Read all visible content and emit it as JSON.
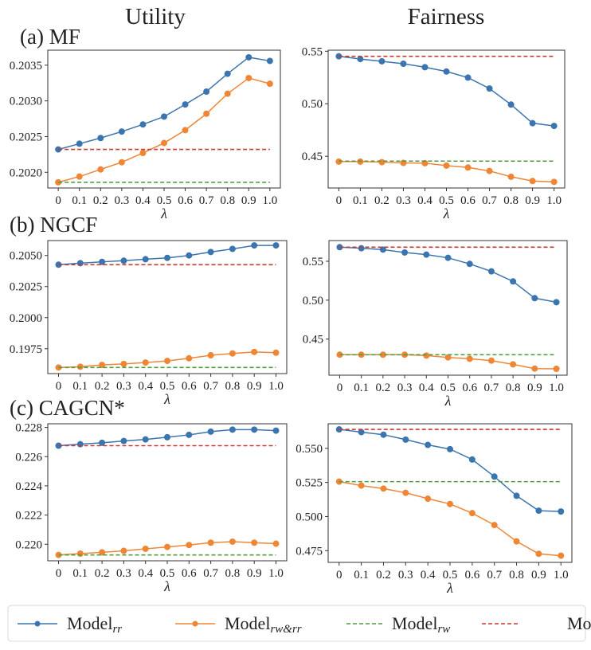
{
  "column_titles": [
    "Utility",
    "Fairness"
  ],
  "row_labels": [
    "(a) MF",
    "(b) NGCF",
    "(c) CAGCN*"
  ],
  "legend": [
    {
      "base": "Model",
      "sub": "rr",
      "color": "#3b75af",
      "style": "solid-marker"
    },
    {
      "base": "Model",
      "sub": "rw&rr",
      "color": "#ef8636",
      "style": "solid-marker"
    },
    {
      "base": "Model",
      "sub": "rw",
      "color": "#519e3e",
      "style": "dashed"
    },
    {
      "base": "Model",
      "sub": "",
      "color": "#c53a32",
      "style": "dashed"
    }
  ],
  "chart_data": [
    {
      "type": "line",
      "row": 0,
      "col": 0,
      "xlabel": "λ",
      "x": [
        0,
        0.1,
        0.2,
        0.3,
        0.4,
        0.5,
        0.6,
        0.7,
        0.8,
        0.9,
        1.0
      ],
      "xtick_labels": [
        "0",
        "0.1",
        "0.2",
        "0.3",
        "0.4",
        "0.5",
        "0.6",
        "0.7",
        "0.8",
        "0.9",
        "1.0"
      ],
      "ylim": [
        0.20178,
        0.20371
      ],
      "yticks": [
        0.202,
        0.2025,
        0.203,
        0.2035
      ],
      "ytick_labels": [
        "0.2020",
        "0.2025",
        "0.2030",
        "0.2035"
      ],
      "series": [
        {
          "name": "Model_rr",
          "values": [
            0.20232,
            0.2024,
            0.20248,
            0.20257,
            0.20267,
            0.20278,
            0.20295,
            0.20313,
            0.20338,
            0.20361,
            0.20356
          ]
        },
        {
          "name": "Model_rw&rr",
          "values": [
            0.20186,
            0.20194,
            0.20204,
            0.20214,
            0.20227,
            0.20241,
            0.20259,
            0.20282,
            0.2031,
            0.20332,
            0.20324
          ]
        },
        {
          "name": "Model_rw",
          "constant": 0.20186
        },
        {
          "name": "Model",
          "constant": 0.20232
        }
      ]
    },
    {
      "type": "line",
      "row": 0,
      "col": 1,
      "xlabel": "λ",
      "x": [
        0,
        0.1,
        0.2,
        0.3,
        0.4,
        0.5,
        0.6,
        0.7,
        0.8,
        0.9,
        1.0
      ],
      "xtick_labels": [
        "0",
        "0.1",
        "0.2",
        "0.3",
        "0.4",
        "0.5",
        "0.6",
        "0.7",
        "0.8",
        "0.9",
        "1.0"
      ],
      "ylim": [
        0.4198,
        0.551
      ],
      "yticks": [
        0.45,
        0.5,
        0.55
      ],
      "ytick_labels": [
        "0.45",
        "0.50",
        "0.55"
      ],
      "series": [
        {
          "name": "Model_rr",
          "values": [
            0.5452,
            0.5426,
            0.5404,
            0.5381,
            0.5348,
            0.5307,
            0.5249,
            0.5145,
            0.4992,
            0.4815,
            0.4789
          ]
        },
        {
          "name": "Model_rw&rr",
          "values": [
            0.4449,
            0.4449,
            0.4444,
            0.4437,
            0.4434,
            0.4411,
            0.4393,
            0.436,
            0.4305,
            0.4264,
            0.4256
          ]
        },
        {
          "name": "Model_rw",
          "constant": 0.4454
        },
        {
          "name": "Model",
          "constant": 0.5452
        }
      ]
    },
    {
      "type": "line",
      "row": 1,
      "col": 0,
      "xlabel": "λ",
      "x": [
        0,
        0.1,
        0.2,
        0.3,
        0.4,
        0.5,
        0.6,
        0.7,
        0.8,
        0.9,
        1.0
      ],
      "xtick_labels": [
        "0",
        "0.1",
        "0.2",
        "0.3",
        "0.4",
        "0.5",
        "0.6",
        "0.7",
        "0.8",
        "0.9",
        "1.0"
      ],
      "ylim": [
        0.1955,
        0.2062
      ],
      "yticks": [
        0.1975,
        0.2,
        0.2025,
        0.205
      ],
      "ytick_labels": [
        "0.1975",
        "0.2000",
        "0.2025",
        "0.2050"
      ],
      "series": [
        {
          "name": "Model_rr",
          "values": [
            0.20426,
            0.20438,
            0.20449,
            0.20458,
            0.2047,
            0.20481,
            0.205,
            0.20528,
            0.20553,
            0.20581,
            0.20581
          ]
        },
        {
          "name": "Model_rw&rr",
          "values": [
            0.19599,
            0.19605,
            0.1962,
            0.19628,
            0.19639,
            0.19652,
            0.19673,
            0.19697,
            0.19712,
            0.19724,
            0.19718
          ]
        },
        {
          "name": "Model_rw",
          "constant": 0.19599
        },
        {
          "name": "Model",
          "constant": 0.20426
        }
      ]
    },
    {
      "type": "line",
      "row": 1,
      "col": 1,
      "xlabel": "λ",
      "x": [
        0,
        0.1,
        0.2,
        0.3,
        0.4,
        0.5,
        0.6,
        0.7,
        0.8,
        0.9,
        1.0
      ],
      "xtick_labels": [
        "0",
        "0.1",
        "0.2",
        "0.3",
        "0.4",
        "0.5",
        "0.6",
        "0.7",
        "0.8",
        "0.9",
        "1.0"
      ],
      "ylim": [
        0.4036,
        0.5766
      ],
      "yticks": [
        0.45,
        0.5,
        0.55
      ],
      "ytick_labels": [
        "0.45",
        "0.50",
        "0.55"
      ],
      "series": [
        {
          "name": "Model_rr",
          "values": [
            0.5681,
            0.5667,
            0.565,
            0.5613,
            0.5585,
            0.5544,
            0.5466,
            0.537,
            0.5241,
            0.5026,
            0.4974
          ]
        },
        {
          "name": "Model_rw&rr",
          "values": [
            0.4299,
            0.4299,
            0.4299,
            0.4299,
            0.4288,
            0.4264,
            0.4247,
            0.4223,
            0.4175,
            0.4121,
            0.4118
          ]
        },
        {
          "name": "Model_rw",
          "constant": 0.4299
        },
        {
          "name": "Model",
          "constant": 0.5681
        }
      ]
    },
    {
      "type": "line",
      "row": 2,
      "col": 0,
      "xlabel": "λ",
      "x": [
        0,
        0.1,
        0.2,
        0.3,
        0.4,
        0.5,
        0.6,
        0.7,
        0.8,
        0.9,
        1.0
      ],
      "xtick_labels": [
        "0",
        "0.1",
        "0.2",
        "0.3",
        "0.4",
        "0.5",
        "0.6",
        "0.7",
        "0.8",
        "0.9",
        "1.0"
      ],
      "ylim": [
        0.21887,
        0.22825
      ],
      "yticks": [
        0.22,
        0.222,
        0.224,
        0.226,
        0.228
      ],
      "ytick_labels": [
        "0.220",
        "0.222",
        "0.224",
        "0.226",
        "0.228"
      ],
      "series": [
        {
          "name": "Model_rr",
          "values": [
            0.22675,
            0.22685,
            0.22695,
            0.22707,
            0.22718,
            0.22733,
            0.22749,
            0.22771,
            0.22785,
            0.22785,
            0.22778
          ]
        },
        {
          "name": "Model_rw&rr",
          "values": [
            0.21927,
            0.21936,
            0.21945,
            0.21955,
            0.21969,
            0.21982,
            0.21995,
            0.22011,
            0.22018,
            0.22011,
            0.22004
          ]
        },
        {
          "name": "Model_rw",
          "constant": 0.21927
        },
        {
          "name": "Model",
          "constant": 0.22675
        }
      ]
    },
    {
      "type": "line",
      "row": 2,
      "col": 1,
      "xlabel": "λ",
      "x": [
        0,
        0.1,
        0.2,
        0.3,
        0.4,
        0.5,
        0.6,
        0.7,
        0.8,
        0.9,
        1.0
      ],
      "xtick_labels": [
        "0",
        "0.1",
        "0.2",
        "0.3",
        "0.4",
        "0.5",
        "0.6",
        "0.7",
        "0.8",
        "0.9",
        "1.0"
      ],
      "ylim": [
        0.4664,
        0.568
      ],
      "yticks": [
        0.475,
        0.5,
        0.525,
        0.55
      ],
      "ytick_labels": [
        "0.475",
        "0.500",
        "0.525",
        "0.550"
      ],
      "series": [
        {
          "name": "Model_rr",
          "values": [
            0.5639,
            0.5619,
            0.56,
            0.5564,
            0.5525,
            0.5494,
            0.5418,
            0.5293,
            0.5152,
            0.5043,
            0.5037
          ]
        },
        {
          "name": "Model_rw&rr",
          "values": [
            0.5256,
            0.5227,
            0.5205,
            0.5174,
            0.5131,
            0.5092,
            0.5025,
            0.4938,
            0.4818,
            0.4727,
            0.4713
          ]
        },
        {
          "name": "Model_rw",
          "constant": 0.5256
        },
        {
          "name": "Model",
          "constant": 0.5639
        }
      ]
    }
  ]
}
